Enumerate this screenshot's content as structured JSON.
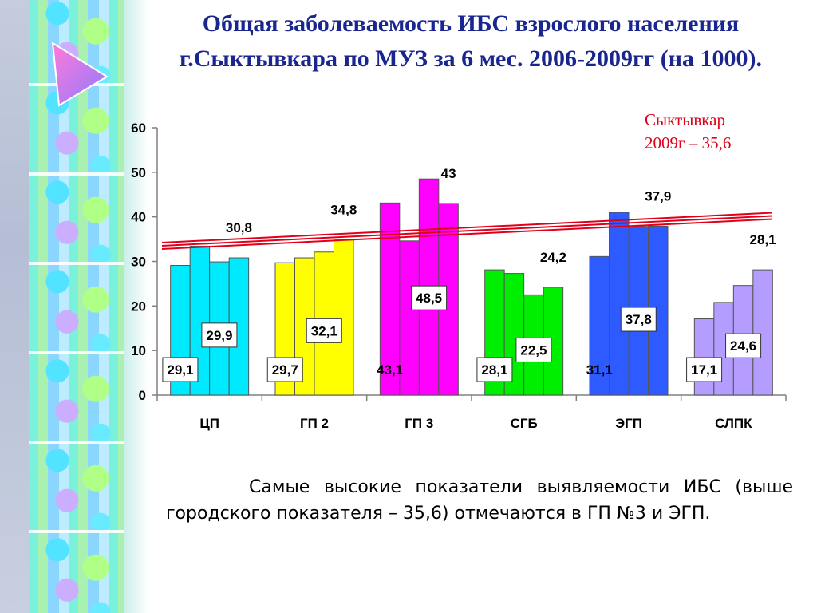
{
  "title": {
    "line1": "Общая заболеваемость ИБС взрослого населения",
    "line2": "г.Сыктывкара по МУЗ за 6 мес. 2006-2009гг (на 1000)."
  },
  "city_note": {
    "line1": "Сыктывкар",
    "line2": "2009г – 35,6"
  },
  "conclusion": "Самые высокие показатели выявляемости ИБС (выше городского показателя – 35,6) отмечаются в ГП №3 и ЭГП.",
  "colors": {
    "title": "#1a2690",
    "city_note": "#e0001a",
    "reference_line": "#e0001a",
    "groups": [
      "#00eaff",
      "#ffff00",
      "#ff00ff",
      "#00ee00",
      "#2d5bff",
      "#b59cff"
    ]
  },
  "chart_data": {
    "type": "bar",
    "categories": [
      "ЦП",
      "ГП 2",
      "ГП 3",
      "СГБ",
      "ЭГП",
      "СЛПК"
    ],
    "ylim": [
      0,
      60
    ],
    "yticks": [
      0,
      10,
      20,
      30,
      40,
      50,
      60
    ],
    "grid": false,
    "bars_per_category": 4,
    "values": [
      [
        29.1,
        33.4,
        29.9,
        30.8
      ],
      [
        29.7,
        30.8,
        32.1,
        34.8
      ],
      [
        43.1,
        34.6,
        48.5,
        43.0
      ],
      [
        28.1,
        27.3,
        22.5,
        24.2
      ],
      [
        31.1,
        41.0,
        37.8,
        37.9
      ],
      [
        17.1,
        20.8,
        24.6,
        28.1
      ]
    ],
    "data_labels": [
      {
        "category": 0,
        "bar": 0,
        "text": "29,1",
        "boxed": true
      },
      {
        "category": 0,
        "bar": 2,
        "text": "29,9",
        "boxed": true
      },
      {
        "category": 0,
        "bar": 3,
        "text": "30,8",
        "boxed": false
      },
      {
        "category": 1,
        "bar": 0,
        "text": "29,7",
        "boxed": true
      },
      {
        "category": 1,
        "bar": 2,
        "text": "32,1",
        "boxed": true
      },
      {
        "category": 1,
        "bar": 3,
        "text": "34,8",
        "boxed": false
      },
      {
        "category": 2,
        "bar": 0,
        "text": "43,1",
        "boxed": false
      },
      {
        "category": 2,
        "bar": 2,
        "text": "48,5",
        "boxed": true
      },
      {
        "category": 2,
        "bar": 3,
        "text": "43",
        "boxed": false
      },
      {
        "category": 3,
        "bar": 0,
        "text": "28,1",
        "boxed": true
      },
      {
        "category": 3,
        "bar": 2,
        "text": "22,5",
        "boxed": true
      },
      {
        "category": 3,
        "bar": 3,
        "text": "24,2",
        "boxed": false
      },
      {
        "category": 4,
        "bar": 0,
        "text": "31,1",
        "boxed": false
      },
      {
        "category": 4,
        "bar": 2,
        "text": "37,8",
        "boxed": true
      },
      {
        "category": 4,
        "bar": 3,
        "text": "37,9",
        "boxed": false
      },
      {
        "category": 5,
        "bar": 0,
        "text": "17,1",
        "boxed": true
      },
      {
        "category": 5,
        "bar": 2,
        "text": "24,6",
        "boxed": true
      },
      {
        "category": 5,
        "bar": 3,
        "text": "28,1",
        "boxed": false
      }
    ],
    "reference_line": {
      "value_start": 33.5,
      "value_end": 40.2
    }
  }
}
